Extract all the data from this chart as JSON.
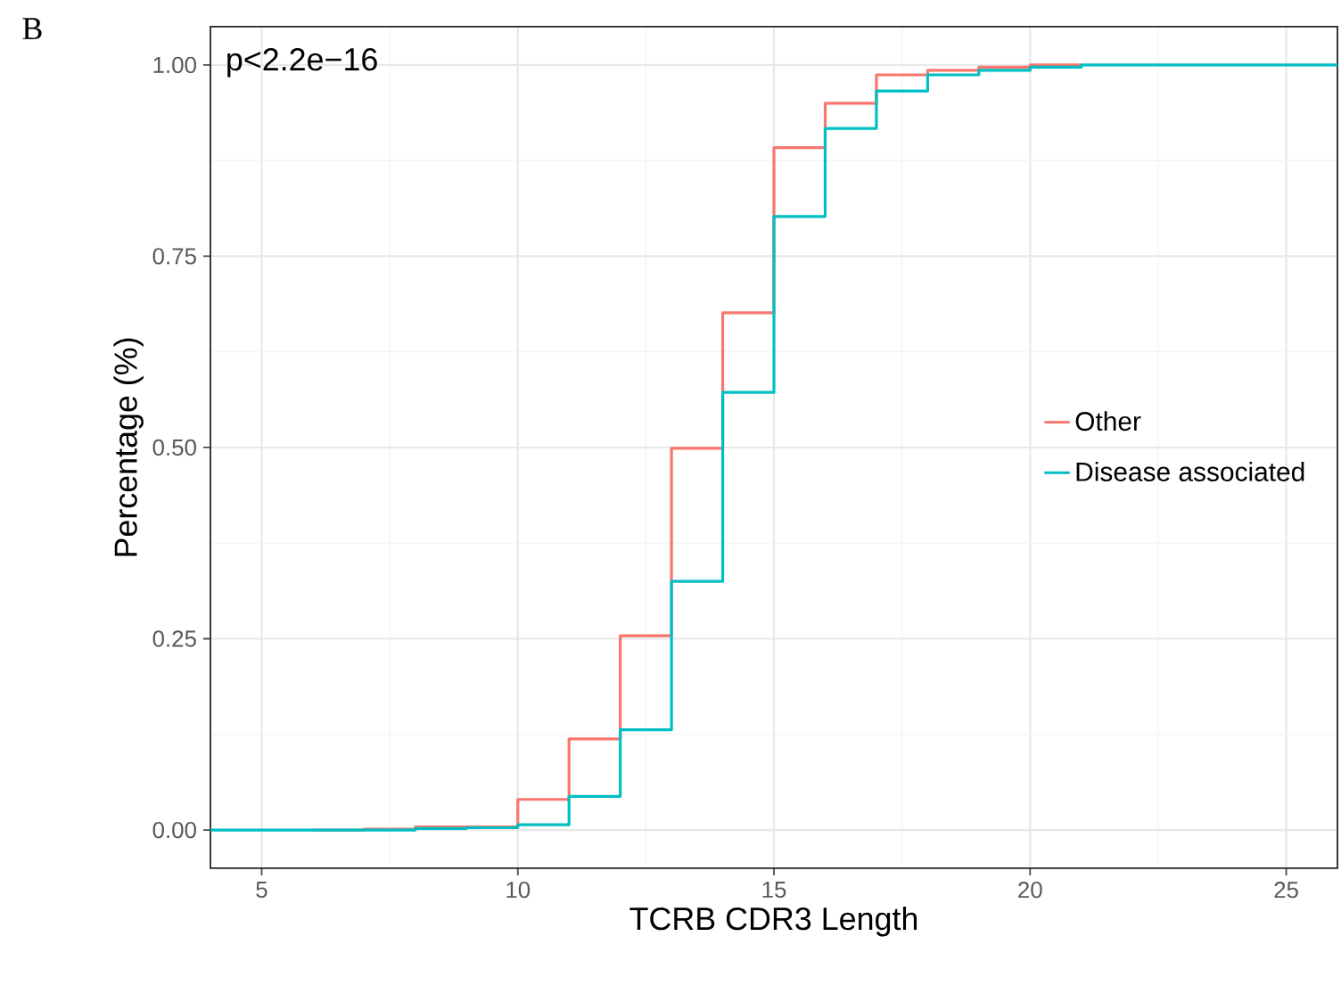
{
  "chart_data": {
    "type": "step",
    "xlabel": "TCRB CDR3 Length",
    "ylabel": "Percentage (%)",
    "annotations": [
      "B",
      "p<2.2e−16"
    ],
    "xlim": [
      4,
      26
    ],
    "ylim": [
      -0.05,
      1.05
    ],
    "xticks": [
      5,
      10,
      15,
      20,
      25
    ],
    "yticks": [
      {
        "value": 0,
        "label": "0.00"
      },
      {
        "value": 0.25,
        "label": "0.25"
      },
      {
        "value": 0.5,
        "label": "0.50"
      },
      {
        "value": 0.75,
        "label": "0.75"
      },
      {
        "value": 1,
        "label": "1.00"
      }
    ],
    "grid": true,
    "legend": "right",
    "line_style": "solid",
    "marker": "none",
    "series": [
      {
        "name": "Other",
        "color": "#f8766d",
        "x": [
          6,
          7,
          8,
          9,
          10,
          11,
          12,
          13,
          14,
          15,
          16,
          17,
          18,
          19,
          20,
          21
        ],
        "values": [
          0,
          0.001,
          0.004,
          0.004,
          0.04,
          0.119,
          0.254,
          0.499,
          0.676,
          0.892,
          0.95,
          0.987,
          0.993,
          0.997,
          1.0,
          1.0
        ]
      },
      {
        "name": "Disease associated",
        "color": "#00bfc4",
        "x": [
          4,
          5,
          6,
          7,
          8,
          9,
          10,
          11,
          12,
          13,
          14,
          15,
          16,
          17,
          18,
          19,
          20,
          21,
          22,
          23,
          24,
          25,
          26
        ],
        "values": [
          0,
          0,
          0,
          0,
          0.002,
          0.003,
          0.007,
          0.044,
          0.131,
          0.325,
          0.572,
          0.802,
          0.917,
          0.966,
          0.987,
          0.993,
          0.997,
          1.0,
          1.0,
          1.0,
          1.0,
          1.0,
          1.0
        ]
      }
    ]
  }
}
